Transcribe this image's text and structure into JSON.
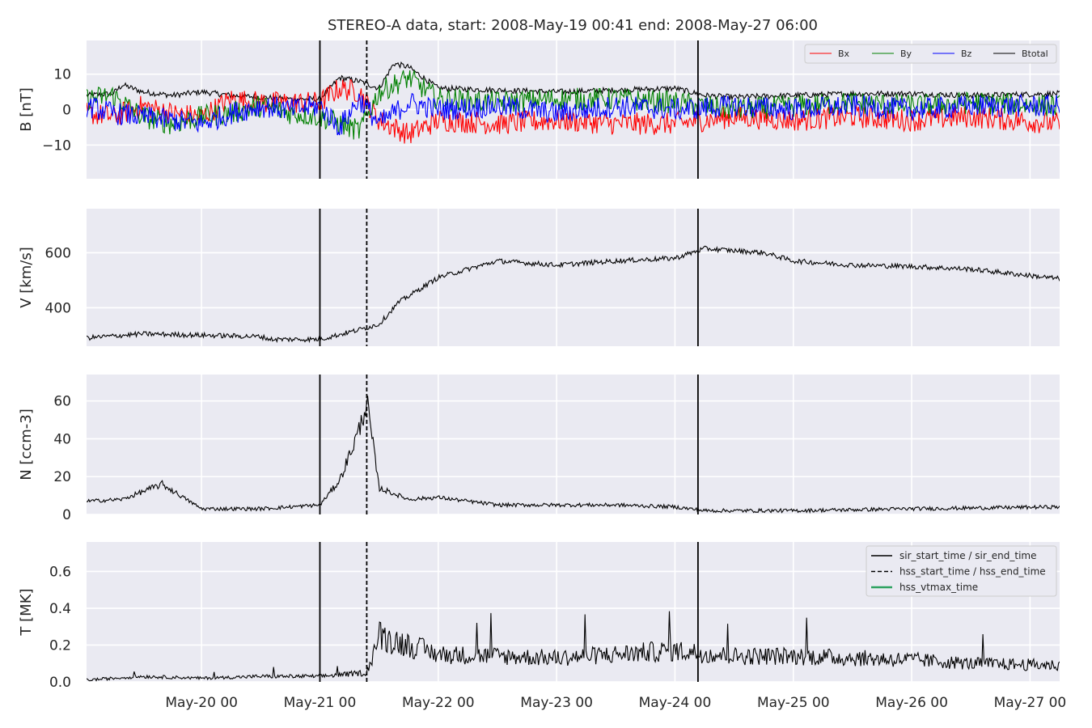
{
  "title": "STEREO-A data, start: 2008-May-19 00:41  end: 2008-May-27 06:00",
  "colors": {
    "panel_bg": "#eaeaf2",
    "grid": "#ffffff",
    "Bx": "#ff0000",
    "By": "#008000",
    "Bz": "#0000ff",
    "Btotal": "#000000",
    "hss_vtmax": "#2ca25f"
  },
  "chart_data": {
    "type": "line",
    "x_axis": {
      "type": "date",
      "range": [
        "2008-05-19 00:41",
        "2008-05-27 06:00"
      ],
      "tick_labels": [
        "May-20 00",
        "May-21 00",
        "May-22 00",
        "May-23 00",
        "May-24 00",
        "May-25 00",
        "May-26 00",
        "May-27 00"
      ],
      "tick_dates": [
        "2008-05-20 00:00",
        "2008-05-21 00:00",
        "2008-05-22 00:00",
        "2008-05-23 00:00",
        "2008-05-24 00:00",
        "2008-05-25 00:00",
        "2008-05-26 00:00",
        "2008-05-27 00:00"
      ]
    },
    "event_lines": [
      {
        "time": "2008-05-21 00:00",
        "style": "solid"
      },
      {
        "time": "2008-05-21 09:30",
        "style": "dashed"
      },
      {
        "time": "2008-05-24 04:40",
        "style": "solid"
      }
    ],
    "panels": [
      {
        "id": "B",
        "ylabel": "B [nT]",
        "ylim": [
          -19.5,
          19.5
        ],
        "yticks": [
          -10,
          0,
          10
        ],
        "ytick_labels": [
          "−10",
          "0",
          "10"
        ],
        "legend": {
          "position": "top-right",
          "columns": 4,
          "entries": [
            "Bx",
            "By",
            "Bz",
            "Btotal"
          ]
        },
        "series": [
          {
            "name": "Btotal",
            "color": "#000000",
            "x": [
              "2008-05-19 00:41",
              "2008-05-19 06:00",
              "2008-05-19 08:00",
              "2008-05-19 12:00",
              "2008-05-19 18:00",
              "2008-05-20 00:00",
              "2008-05-20 06:00",
              "2008-05-20 12:00",
              "2008-05-20 18:00",
              "2008-05-21 00:00",
              "2008-05-21 04:00",
              "2008-05-21 08:00",
              "2008-05-21 12:00",
              "2008-05-21 15:00",
              "2008-05-21 18:00",
              "2008-05-22 00:00",
              "2008-05-22 12:00",
              "2008-05-23 00:00",
              "2008-05-23 12:00",
              "2008-05-24 00:00",
              "2008-05-24 06:00",
              "2008-05-24 12:00",
              "2008-05-25 00:00",
              "2008-05-25 12:00",
              "2008-05-26 00:00",
              "2008-05-26 12:00",
              "2008-05-27 06:00"
            ],
            "values": [
              4,
              4.5,
              7,
              5,
              4,
              5,
              4,
              3.5,
              3,
              3,
              9,
              8,
              6,
              13,
              12,
              6,
              5.5,
              5,
              5.5,
              6,
              4,
              3.5,
              4,
              4.5,
              4.5,
              4,
              4.5
            ]
          },
          {
            "name": "Bx",
            "color": "#ff0000",
            "x": [
              "2008-05-19 00:41",
              "2008-05-19 06:00",
              "2008-05-19 12:00",
              "2008-05-19 18:00",
              "2008-05-20 00:00",
              "2008-05-20 06:00",
              "2008-05-20 12:00",
              "2008-05-20 18:00",
              "2008-05-21 00:00",
              "2008-05-21 04:00",
              "2008-05-21 08:00",
              "2008-05-21 12:00",
              "2008-05-21 18:00",
              "2008-05-22 00:00",
              "2008-05-22 12:00",
              "2008-05-23 00:00",
              "2008-05-23 12:00",
              "2008-05-24 00:00",
              "2008-05-24 12:00",
              "2008-05-25 00:00",
              "2008-05-25 12:00",
              "2008-05-26 00:00",
              "2008-05-26 12:00",
              "2008-05-27 06:00"
            ],
            "values": [
              -1,
              -2,
              1,
              -1,
              -2,
              3,
              2,
              2,
              2,
              6,
              5,
              -3,
              -7,
              -3,
              -4,
              -3,
              -4,
              -4,
              -2,
              -3,
              -2,
              -3,
              -2,
              -4
            ]
          },
          {
            "name": "By",
            "color": "#008000",
            "x": [
              "2008-05-19 00:41",
              "2008-05-19 06:00",
              "2008-05-19 12:00",
              "2008-05-19 18:00",
              "2008-05-20 00:00",
              "2008-05-20 06:00",
              "2008-05-20 12:00",
              "2008-05-20 18:00",
              "2008-05-21 00:00",
              "2008-05-21 04:00",
              "2008-05-21 08:00",
              "2008-05-21 12:00",
              "2008-05-21 18:00",
              "2008-05-22 00:00",
              "2008-05-22 12:00",
              "2008-05-23 00:00",
              "2008-05-23 12:00",
              "2008-05-24 00:00",
              "2008-05-24 12:00",
              "2008-05-25 00:00",
              "2008-05-25 12:00",
              "2008-05-26 00:00",
              "2008-05-26 12:00",
              "2008-05-27 06:00"
            ],
            "values": [
              3,
              4,
              -2,
              -4,
              -2,
              -1,
              1,
              -1,
              -2,
              -4,
              -6,
              5,
              9,
              3,
              2,
              3,
              3,
              2,
              0,
              1,
              2,
              1,
              2,
              1
            ]
          },
          {
            "name": "Bz",
            "color": "#0000ff",
            "x": [
              "2008-05-19 00:41",
              "2008-05-19 06:00",
              "2008-05-19 12:00",
              "2008-05-19 18:00",
              "2008-05-20 00:00",
              "2008-05-20 06:00",
              "2008-05-20 12:00",
              "2008-05-20 18:00",
              "2008-05-21 00:00",
              "2008-05-21 04:00",
              "2008-05-21 08:00",
              "2008-05-21 12:00",
              "2008-05-21 18:00",
              "2008-05-22 00:00",
              "2008-05-22 12:00",
              "2008-05-23 00:00",
              "2008-05-23 12:00",
              "2008-05-24 00:00",
              "2008-05-24 12:00",
              "2008-05-25 00:00",
              "2008-05-25 12:00",
              "2008-05-26 00:00",
              "2008-05-26 12:00",
              "2008-05-27 06:00"
            ],
            "values": [
              1,
              -1,
              -2,
              -3,
              -4,
              -1,
              1,
              0,
              1,
              -5,
              3,
              -4,
              2,
              0,
              1,
              -1,
              1,
              0,
              1,
              0,
              1,
              0,
              1,
              1
            ]
          }
        ]
      },
      {
        "id": "V",
        "ylabel": "V [km/s]",
        "ylim": [
          260,
          760
        ],
        "yticks": [
          400,
          600
        ],
        "ytick_labels": [
          "400",
          "600"
        ],
        "series": [
          {
            "name": "V",
            "color": "#000000",
            "x": [
              "2008-05-19 00:41",
              "2008-05-19 12:00",
              "2008-05-20 00:00",
              "2008-05-20 12:00",
              "2008-05-20 14:00",
              "2008-05-21 00:00",
              "2008-05-21 08:00",
              "2008-05-21 12:00",
              "2008-05-21 16:00",
              "2008-05-22 00:00",
              "2008-05-22 12:00",
              "2008-05-23 00:00",
              "2008-05-23 12:00",
              "2008-05-24 00:00",
              "2008-05-24 06:00",
              "2008-05-24 18:00",
              "2008-05-25 00:00",
              "2008-05-25 12:00",
              "2008-05-26 00:00",
              "2008-05-26 12:00",
              "2008-05-27 06:00"
            ],
            "values": [
              290,
              305,
              300,
              295,
              285,
              285,
              320,
              340,
              420,
              510,
              570,
              555,
              570,
              580,
              615,
              600,
              570,
              555,
              550,
              540,
              505
            ]
          }
        ]
      },
      {
        "id": "N",
        "ylabel": "N [ccm-3]",
        "ylim": [
          0,
          74
        ],
        "yticks": [
          0,
          20,
          40,
          60
        ],
        "ytick_labels": [
          "0",
          "20",
          "40",
          "60"
        ],
        "series": [
          {
            "name": "N",
            "color": "#000000",
            "x": [
              "2008-05-19 00:41",
              "2008-05-19 08:00",
              "2008-05-19 16:00",
              "2008-05-20 00:00",
              "2008-05-20 12:00",
              "2008-05-21 00:00",
              "2008-05-21 04:00",
              "2008-05-21 08:00",
              "2008-05-21 09:30",
              "2008-05-21 12:00",
              "2008-05-21 18:00",
              "2008-05-22 00:00",
              "2008-05-22 12:00",
              "2008-05-23 00:00",
              "2008-05-23 12:00",
              "2008-05-24 00:00",
              "2008-05-24 06:00",
              "2008-05-25 00:00",
              "2008-05-26 00:00",
              "2008-05-27 06:00"
            ],
            "values": [
              7,
              8,
              16,
              3,
              3,
              5,
              18,
              45,
              60,
              14,
              8,
              9,
              5,
              5,
              5,
              4,
              2,
              2,
              3,
              4
            ]
          }
        ]
      },
      {
        "id": "T",
        "ylabel": "T [MK]",
        "ylim": [
          0,
          0.76
        ],
        "yticks": [
          0.0,
          0.2,
          0.4,
          0.6
        ],
        "ytick_labels": [
          "0.0",
          "0.2",
          "0.4",
          "0.6"
        ],
        "legend": {
          "position": "top-right",
          "entries": [
            {
              "label": "sir_start_time / sir_end_time",
              "style": "solid",
              "color": "#000000"
            },
            {
              "label": "hss_start_time / hss_end_time",
              "style": "dashed",
              "color": "#000000"
            },
            {
              "label": "hss_vtmax_time",
              "style": "solid",
              "color": "#2ca25f"
            }
          ]
        },
        "series": [
          {
            "name": "T",
            "color": "#000000",
            "x": [
              "2008-05-19 00:41",
              "2008-05-19 12:00",
              "2008-05-20 00:00",
              "2008-05-20 12:00",
              "2008-05-20 18:00",
              "2008-05-21 00:00",
              "2008-05-21 09:30",
              "2008-05-21 12:00",
              "2008-05-21 18:00",
              "2008-05-22 00:00",
              "2008-05-22 12:00",
              "2008-05-23 00:00",
              "2008-05-23 12:00",
              "2008-05-24 00:00",
              "2008-05-24 12:00",
              "2008-05-25 00:00",
              "2008-05-25 12:00",
              "2008-05-26 00:00",
              "2008-05-26 12:00",
              "2008-05-27 06:00"
            ],
            "values": [
              0.01,
              0.03,
              0.02,
              0.03,
              0.03,
              0.03,
              0.05,
              0.25,
              0.2,
              0.15,
              0.14,
              0.13,
              0.15,
              0.17,
              0.14,
              0.14,
              0.13,
              0.12,
              0.1,
              0.09
            ]
          }
        ]
      }
    ]
  }
}
